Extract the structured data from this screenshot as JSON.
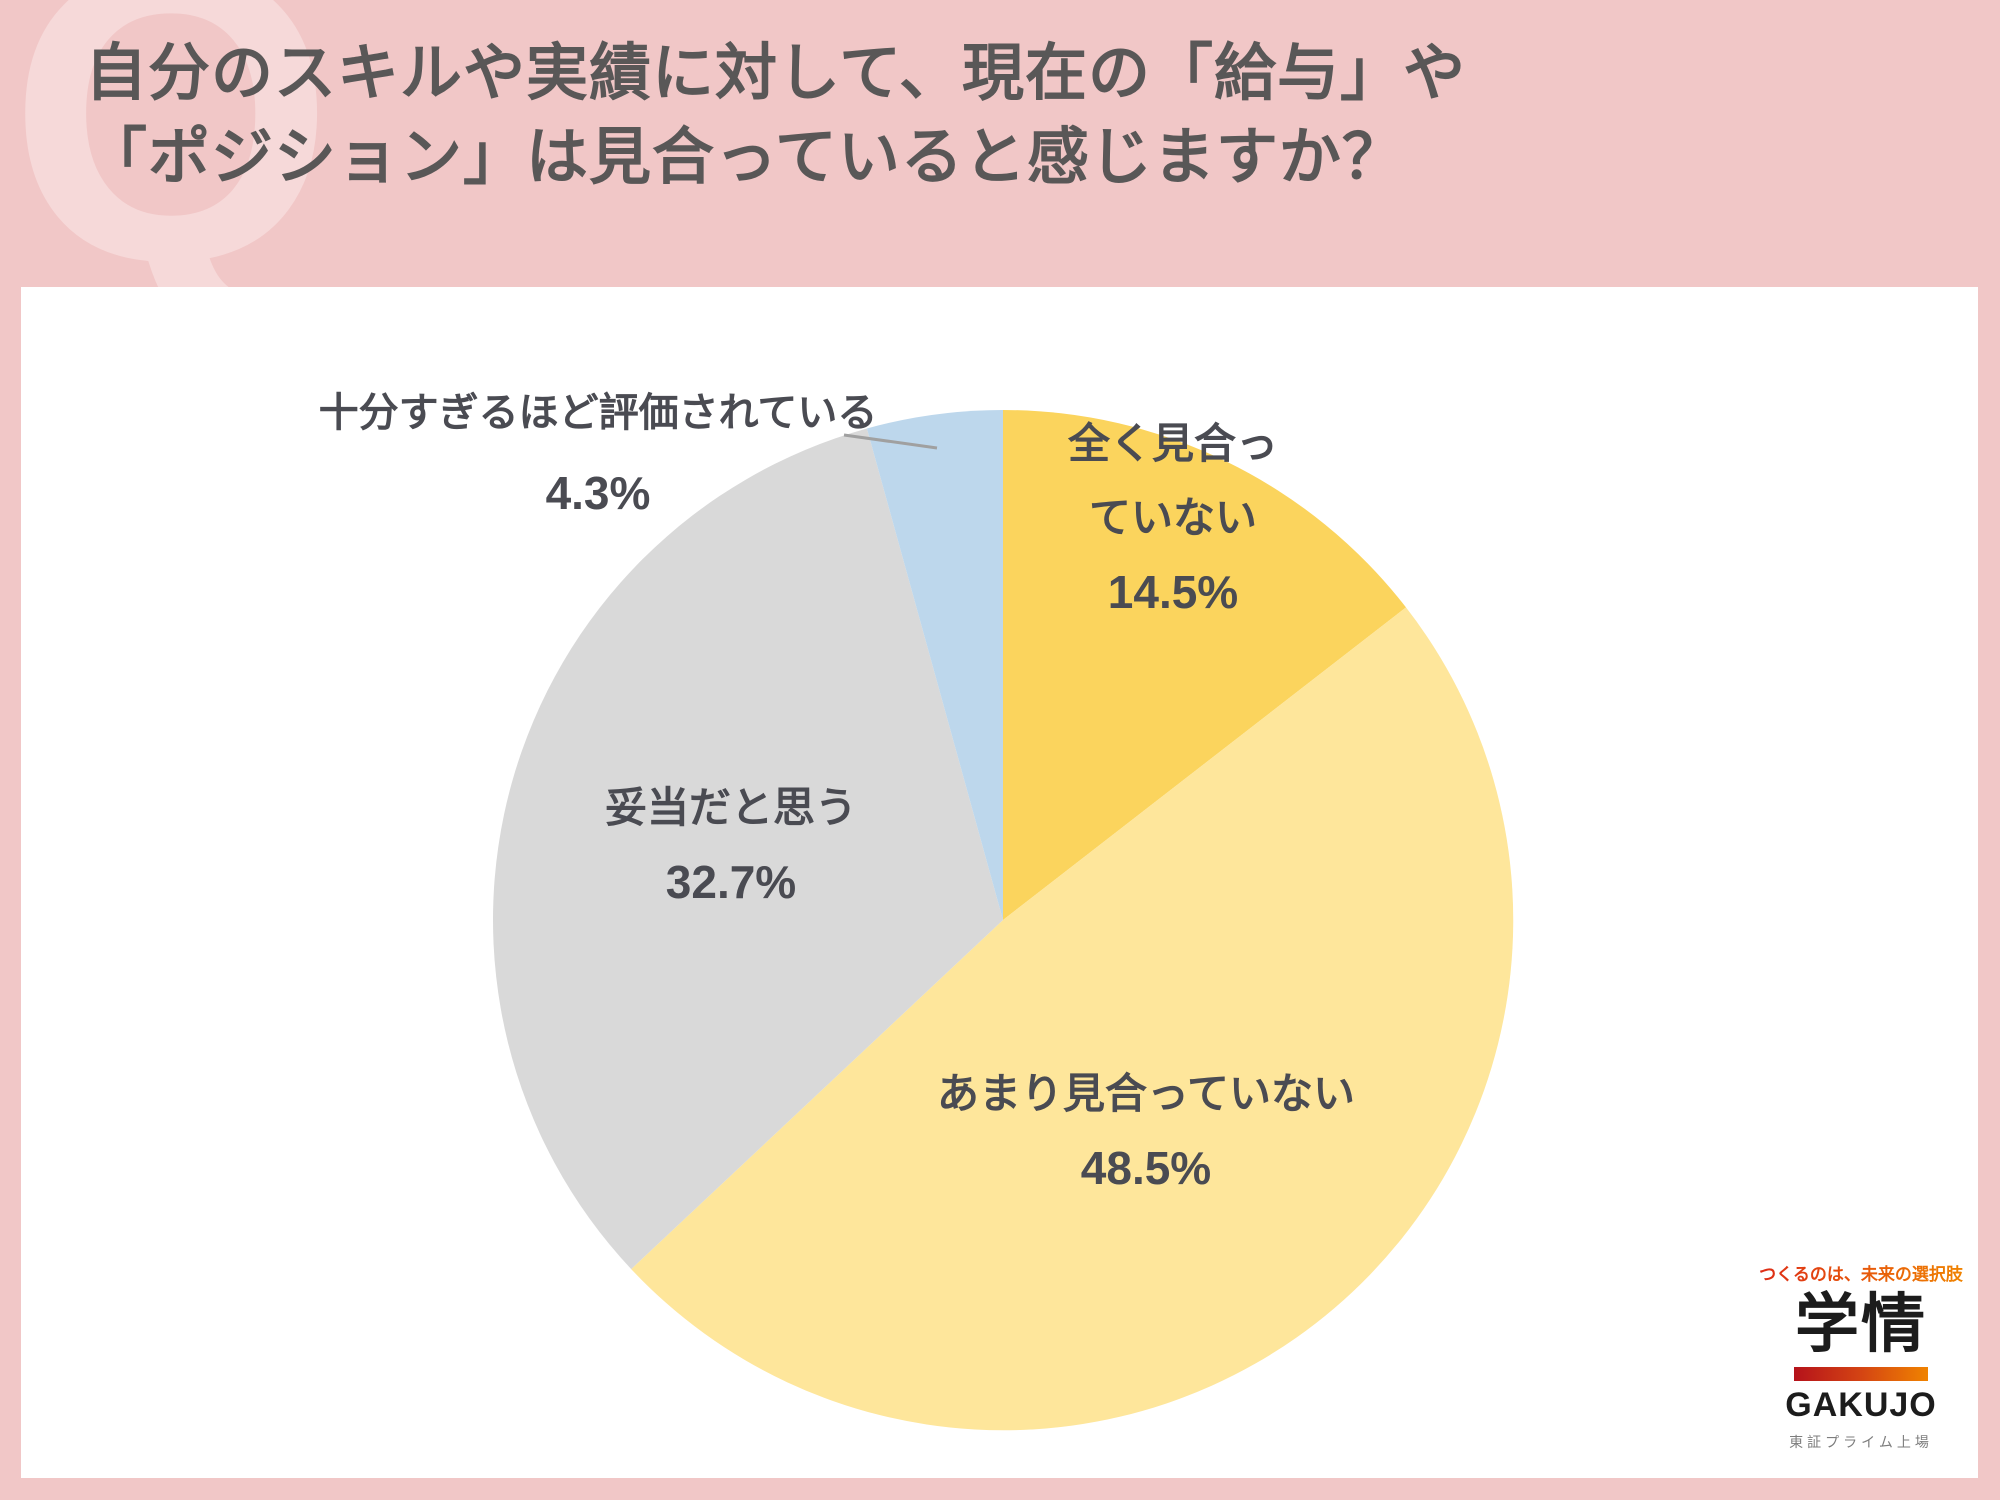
{
  "header": {
    "watermark": "Q",
    "title_line1": "自分のスキルや実績に対して、現在の「給与」や",
    "title_line2": "「ポジション」は見合っていると感じますか？"
  },
  "chart_data": {
    "type": "pie",
    "title": "",
    "categories": [
      "全く見合っていない",
      "あまり見合っていない",
      "妥当だと思う",
      "十分すぎるほど評価されている"
    ],
    "values": [
      14.5,
      48.5,
      32.7,
      4.3
    ],
    "unit": "%",
    "colors": [
      "#fbd45d",
      "#fee69b",
      "#d9d9d9",
      "#bdd7ec"
    ],
    "start_angle_deg": 0,
    "direction": "clockwise",
    "legend_position": "none",
    "labels": [
      {
        "line1": "全く見合っ",
        "line2": "ていない",
        "value_label": "14.5%",
        "placement": "inside"
      },
      {
        "line1": "あまり見合っていない",
        "line2": "",
        "value_label": "48.5%",
        "placement": "inside"
      },
      {
        "line1": "妥当だと思う",
        "line2": "",
        "value_label": "32.7%",
        "placement": "inside"
      },
      {
        "line1": "十分すぎるほど評価されている",
        "line2": "",
        "value_label": "4.3%",
        "placement": "outside-callout"
      }
    ]
  },
  "logo": {
    "tagline": "つくるのは、未来の選択肢",
    "brand_kanji": "学情",
    "brand_roman": "GAKUJO",
    "listing": "東証プライム上場"
  },
  "palette": {
    "page_background": "#f1c7c7",
    "watermark_pink": "#f6d9d9",
    "title_text": "#595757",
    "card_background": "#ffffff",
    "label_text": "#4a4b52",
    "leader_line": "#a0a0a0",
    "logo_gradient_start": "#b5121b",
    "logo_gradient_end": "#f08300",
    "logo_tagline_color": "#e8541a"
  }
}
